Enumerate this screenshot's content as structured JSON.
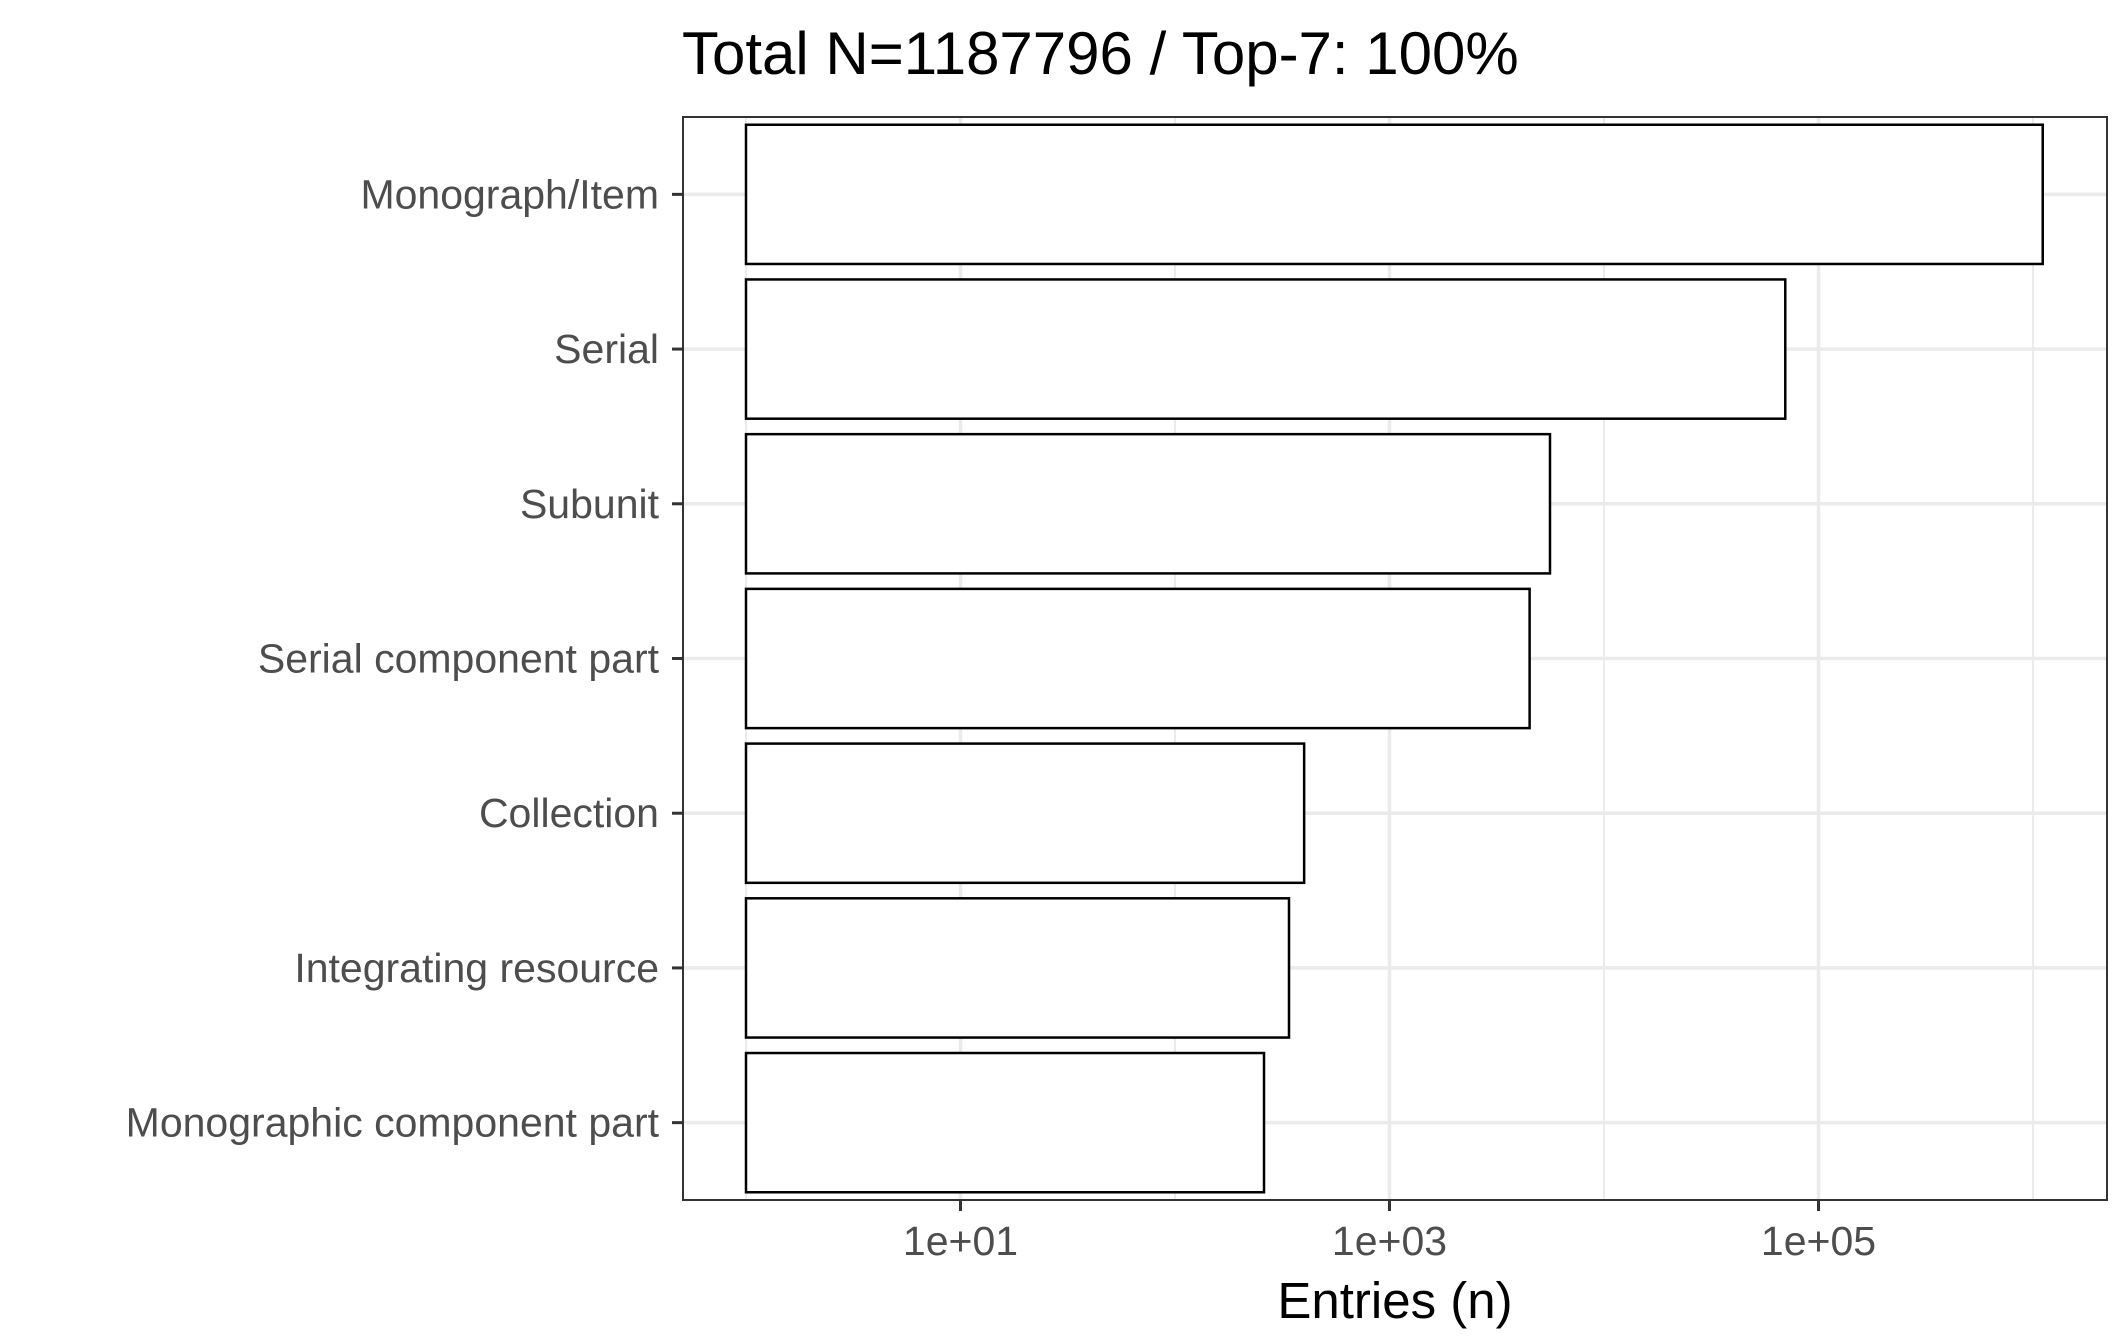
{
  "chart_data": {
    "type": "bar",
    "orientation": "horizontal",
    "title": "Total N=1187796 / Top-7: 100%",
    "xlabel": "Entries (n)",
    "ylabel": "",
    "x_scale": "log10",
    "xlim": [
      1,
      1200000
    ],
    "x_ticks": [
      {
        "value": 10,
        "label": "1e+01"
      },
      {
        "value": 1000,
        "label": "1e+03"
      },
      {
        "value": 100000,
        "label": "1e+05"
      }
    ],
    "categories": [
      "Monograph/Item",
      "Serial",
      "Subunit",
      "Serial component part",
      "Collection",
      "Integrating resource",
      "Monographic component part"
    ],
    "values": [
      1110000,
      70000,
      5600,
      4500,
      400,
      340,
      260
    ],
    "bar_fill": "#ffffff",
    "bar_stroke": "#000000",
    "grid": true,
    "grid_color": "#ebebeb",
    "panel_border_color": "#333333",
    "legend": "none"
  }
}
